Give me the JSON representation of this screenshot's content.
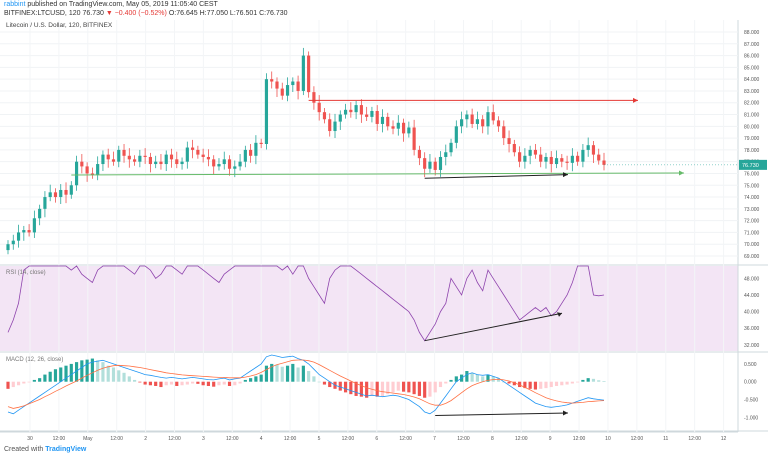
{
  "header": {
    "line1_user": "rabbint",
    "line1_rest": "published on TradingView.com, May 05, 2019 11:05:40 CEST",
    "symbol": "BITFINEX:LTCUSD, 120",
    "ohlc_prefix": "76.730",
    "change": "▼ −0.400 (−0.52%)",
    "ohlc_rest": "O:76.645 H:77.050 L:76.501 C:76.730"
  },
  "chart_data": {
    "type": "candlestick",
    "title": "Litecoin / U.S. Dollar, 120, BITFINEX",
    "last_price_label": "76.730",
    "last_price": 76.73,
    "price_axis": {
      "ticks": [
        "88.000",
        "87.000",
        "86.000",
        "85.000",
        "84.000",
        "83.000",
        "82.000",
        "81.000",
        "80.000",
        "79.000",
        "78.000",
        "77.000",
        "76.000",
        "75.000",
        "74.000",
        "73.000",
        "72.000",
        "71.000",
        "70.000",
        "69.000"
      ],
      "min": 69,
      "max": 88
    },
    "time_axis": {
      "labels": [
        "30",
        "12:00",
        "May",
        "12:00",
        "2",
        "12:00",
        "3",
        "12:00",
        "4",
        "12:00",
        "5",
        "12:00",
        "6",
        "12:00",
        "7",
        "12:00",
        "8",
        "12:00",
        "9",
        "12:00",
        "10",
        "12:00",
        "11",
        "12:00",
        "12",
        "13:00"
      ]
    },
    "candles_close": [
      70.0,
      70.3,
      71.0,
      71.2,
      71.0,
      72.2,
      73.0,
      74.0,
      74.4,
      74.0,
      74.6,
      74.2,
      75.0,
      77.0,
      76.6,
      76.0,
      75.9,
      76.8,
      77.6,
      77.2,
      77.0,
      78.0,
      77.5,
      77.2,
      77.0,
      77.5,
      77.4,
      76.8,
      77.0,
      76.8,
      77.6,
      77.2,
      76.8,
      77.0,
      78.2,
      78.0,
      77.6,
      77.4,
      77.2,
      76.6,
      76.8,
      77.2,
      76.4,
      76.6,
      77.0,
      78.0,
      77.5,
      78.6,
      78.5,
      84.0,
      83.8,
      83.2,
      82.6,
      83.5,
      83.8,
      83.0,
      86.0,
      82.9,
      82.0,
      81.2,
      80.6,
      79.6,
      80.4,
      81.0,
      81.4,
      81.2,
      81.8,
      81.0,
      80.8,
      81.3,
      80.2,
      80.8,
      80.0,
      79.8,
      80.3,
      79.4,
      79.9,
      78.0,
      77.3,
      76.4,
      77.0,
      76.3,
      77.4,
      77.8,
      78.6,
      80.0,
      80.6,
      81.0,
      80.2,
      80.6,
      80.0,
      81.2,
      80.5,
      80.0,
      79.0,
      78.5,
      77.8,
      77.0,
      77.5,
      78.0,
      77.6,
      77.0,
      77.4,
      76.8,
      77.3,
      77.0,
      76.9,
      77.5,
      77.0,
      78.0,
      78.4,
      77.6,
      77.1,
      76.73
    ],
    "horizontal_lines": [
      {
        "color": "#e53935",
        "price": 82.2
      },
      {
        "color": "#66bb6a",
        "price": 76.0
      }
    ],
    "rsi": {
      "label": "RSI (14, close)",
      "ticks": [
        "48.000",
        "44.000",
        "40.000",
        "36.000",
        "32.000"
      ],
      "min": 31,
      "max": 50.5,
      "values": [
        35,
        38,
        42,
        50,
        52,
        56,
        60,
        62,
        58,
        55,
        54,
        52,
        50,
        52,
        49,
        48,
        47,
        50,
        52,
        54,
        55,
        52,
        51,
        50,
        49,
        51,
        52,
        50,
        48,
        49,
        51,
        52,
        50,
        49,
        51,
        53,
        52,
        50,
        49,
        48,
        47,
        49,
        50,
        52,
        54,
        55,
        57,
        60,
        62,
        56,
        54,
        52,
        50,
        51,
        49,
        55,
        52,
        48,
        46,
        44,
        42,
        48,
        50,
        52,
        54,
        52,
        50,
        49,
        48,
        47,
        46,
        45,
        44,
        43,
        42,
        41,
        40,
        38,
        35,
        33,
        35,
        37,
        40,
        42,
        48,
        46,
        44,
        48,
        50,
        47,
        45,
        50,
        48,
        46,
        44,
        42,
        40,
        38,
        39,
        40,
        41,
        40,
        41,
        39,
        40,
        42,
        44,
        47,
        52,
        56,
        54,
        44,
        43.8,
        44
      ]
    },
    "macd": {
      "label": "MACD (12, 26, close)",
      "ticks": [
        "0.500",
        "0.000",
        "-0.500",
        "-1.000"
      ],
      "min": -1.3,
      "max": 0.75,
      "histogram": [
        -0.2,
        -0.15,
        -0.1,
        -0.05,
        -0.02,
        0.05,
        0.1,
        0.2,
        0.28,
        0.35,
        0.4,
        0.45,
        0.5,
        0.55,
        0.6,
        0.62,
        0.65,
        0.6,
        0.55,
        0.45,
        0.4,
        0.32,
        0.25,
        0.15,
        0.05,
        -0.02,
        -0.08,
        -0.1,
        -0.12,
        -0.15,
        -0.1,
        -0.08,
        -0.12,
        -0.1,
        -0.08,
        -0.05,
        -0.06,
        -0.1,
        -0.12,
        -0.14,
        -0.1,
        -0.08,
        -0.12,
        -0.1,
        -0.05,
        0.05,
        0.1,
        0.15,
        0.2,
        0.45,
        0.5,
        0.48,
        0.42,
        0.45,
        0.5,
        0.4,
        0.45,
        0.3,
        0.15,
        0.0,
        -0.08,
        -0.15,
        -0.2,
        -0.25,
        -0.3,
        -0.35,
        -0.4,
        -0.42,
        -0.45,
        -0.4,
        -0.42,
        -0.4,
        -0.35,
        -0.3,
        -0.25,
        -0.28,
        -0.3,
        -0.35,
        -0.4,
        -0.45,
        -0.42,
        -0.3,
        -0.15,
        -0.05,
        0.05,
        0.15,
        0.2,
        0.3,
        0.25,
        0.2,
        0.15,
        0.2,
        0.15,
        0.1,
        0.0,
        -0.05,
        -0.1,
        -0.15,
        -0.18,
        -0.2,
        -0.22,
        -0.2,
        -0.18,
        -0.15,
        -0.12,
        -0.1,
        -0.08,
        -0.05,
        -0.02,
        0.05,
        0.1,
        0.08,
        0.04,
        0.02
      ],
      "macd_line": [
        -0.85,
        -0.9,
        -0.8,
        -0.7,
        -0.6,
        -0.5,
        -0.4,
        -0.3,
        -0.2,
        -0.1,
        0.0,
        0.1,
        0.2,
        0.3,
        0.4,
        0.5,
        0.55,
        0.58,
        0.6,
        0.55,
        0.5,
        0.45,
        0.4,
        0.35,
        0.3,
        0.25,
        0.2,
        0.18,
        0.15,
        0.12,
        0.1,
        0.12,
        0.1,
        0.08,
        0.1,
        0.12,
        0.1,
        0.08,
        0.06,
        0.05,
        0.08,
        0.1,
        0.05,
        0.08,
        0.1,
        0.2,
        0.3,
        0.4,
        0.5,
        0.7,
        0.75,
        0.72,
        0.68,
        0.7,
        0.72,
        0.65,
        0.6,
        0.5,
        0.35,
        0.2,
        0.1,
        0.0,
        -0.1,
        -0.15,
        -0.2,
        -0.25,
        -0.3,
        -0.35,
        -0.4,
        -0.38,
        -0.4,
        -0.42,
        -0.4,
        -0.38,
        -0.4,
        -0.45,
        -0.5,
        -0.6,
        -0.7,
        -0.85,
        -0.9,
        -0.8,
        -0.6,
        -0.4,
        -0.2,
        0.0,
        0.1,
        0.2,
        0.25,
        0.2,
        0.18,
        0.2,
        0.15,
        0.1,
        0.0,
        -0.1,
        -0.2,
        -0.3,
        -0.4,
        -0.5,
        -0.6,
        -0.65,
        -0.7,
        -0.72,
        -0.7,
        -0.68,
        -0.65,
        -0.6,
        -0.55,
        -0.5,
        -0.45,
        -0.48,
        -0.5,
        -0.52
      ],
      "signal_line": [
        -0.7,
        -0.75,
        -0.72,
        -0.68,
        -0.62,
        -0.56,
        -0.5,
        -0.42,
        -0.35,
        -0.27,
        -0.2,
        -0.12,
        -0.05,
        0.02,
        0.1,
        0.18,
        0.25,
        0.32,
        0.38,
        0.42,
        0.45,
        0.46,
        0.45,
        0.44,
        0.42,
        0.4,
        0.37,
        0.34,
        0.31,
        0.28,
        0.25,
        0.23,
        0.21,
        0.19,
        0.18,
        0.17,
        0.16,
        0.15,
        0.14,
        0.13,
        0.12,
        0.12,
        0.11,
        0.11,
        0.11,
        0.13,
        0.16,
        0.2,
        0.26,
        0.34,
        0.42,
        0.48,
        0.52,
        0.56,
        0.6,
        0.61,
        0.61,
        0.59,
        0.55,
        0.48,
        0.4,
        0.32,
        0.24,
        0.16,
        0.09,
        0.02,
        -0.05,
        -0.11,
        -0.17,
        -0.21,
        -0.25,
        -0.28,
        -0.3,
        -0.32,
        -0.34,
        -0.36,
        -0.39,
        -0.43,
        -0.48,
        -0.55,
        -0.62,
        -0.66,
        -0.66,
        -0.61,
        -0.53,
        -0.42,
        -0.31,
        -0.2,
        -0.11,
        -0.05,
        0.0,
        0.04,
        0.06,
        0.07,
        0.05,
        0.02,
        -0.03,
        -0.09,
        -0.16,
        -0.23,
        -0.31,
        -0.38,
        -0.45,
        -0.5,
        -0.54,
        -0.57,
        -0.59,
        -0.6,
        -0.59,
        -0.58,
        -0.56,
        -0.55,
        -0.54,
        -0.53
      ]
    }
  },
  "footer": {
    "created_with": "Created with",
    "brand": "TradingView"
  }
}
